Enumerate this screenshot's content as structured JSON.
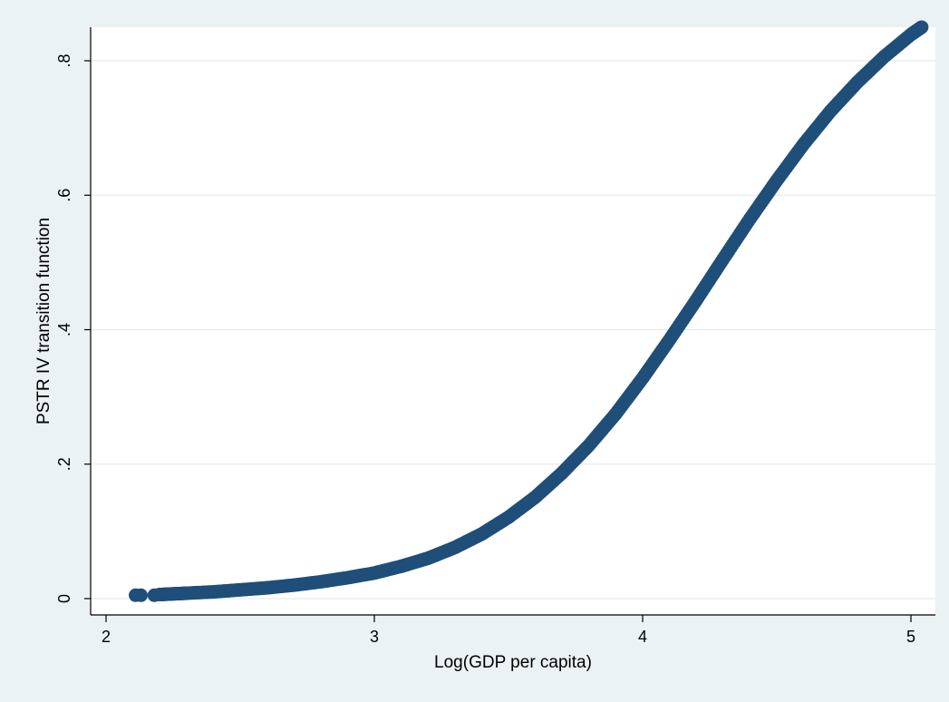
{
  "chart_data": {
    "type": "scatter",
    "title": "",
    "xlabel": "Log(GDP per capita)",
    "ylabel": "PSTR IV transition function",
    "xlim": [
      2,
      5
    ],
    "ylim": [
      0,
      0.8
    ],
    "x_ticks": [
      {
        "value": 2,
        "label": "2"
      },
      {
        "value": 3,
        "label": "3"
      },
      {
        "value": 4,
        "label": "4"
      },
      {
        "value": 5,
        "label": "5"
      }
    ],
    "y_ticks": [
      {
        "value": 0,
        "label": "0"
      },
      {
        "value": 0.2,
        "label": ".2"
      },
      {
        "value": 0.4,
        "label": ".4"
      },
      {
        "value": 0.6,
        "label": ".6"
      },
      {
        "value": 0.8,
        "label": ".8"
      }
    ],
    "grid": "horizontal",
    "marker_color": "#1f4e79",
    "series": [
      {
        "x": [
          2.11,
          2.13,
          2.18,
          2.2,
          2.25,
          2.3,
          2.4,
          2.5,
          2.6,
          2.7,
          2.8,
          2.9,
          3.0,
          3.1,
          3.2,
          3.3,
          3.4,
          3.5,
          3.6,
          3.7,
          3.8,
          3.9,
          4.0,
          4.1,
          4.2,
          4.3,
          4.4,
          4.5,
          4.6,
          4.7,
          4.8,
          4.9,
          5.0,
          5.04
        ],
        "y": [
          0.005,
          0.005,
          0.005,
          0.006,
          0.007,
          0.008,
          0.01,
          0.013,
          0.016,
          0.02,
          0.025,
          0.031,
          0.038,
          0.048,
          0.06,
          0.076,
          0.096,
          0.121,
          0.151,
          0.187,
          0.228,
          0.275,
          0.328,
          0.385,
          0.444,
          0.505,
          0.565,
          0.622,
          0.676,
          0.725,
          0.768,
          0.806,
          0.839,
          0.85
        ]
      }
    ]
  }
}
